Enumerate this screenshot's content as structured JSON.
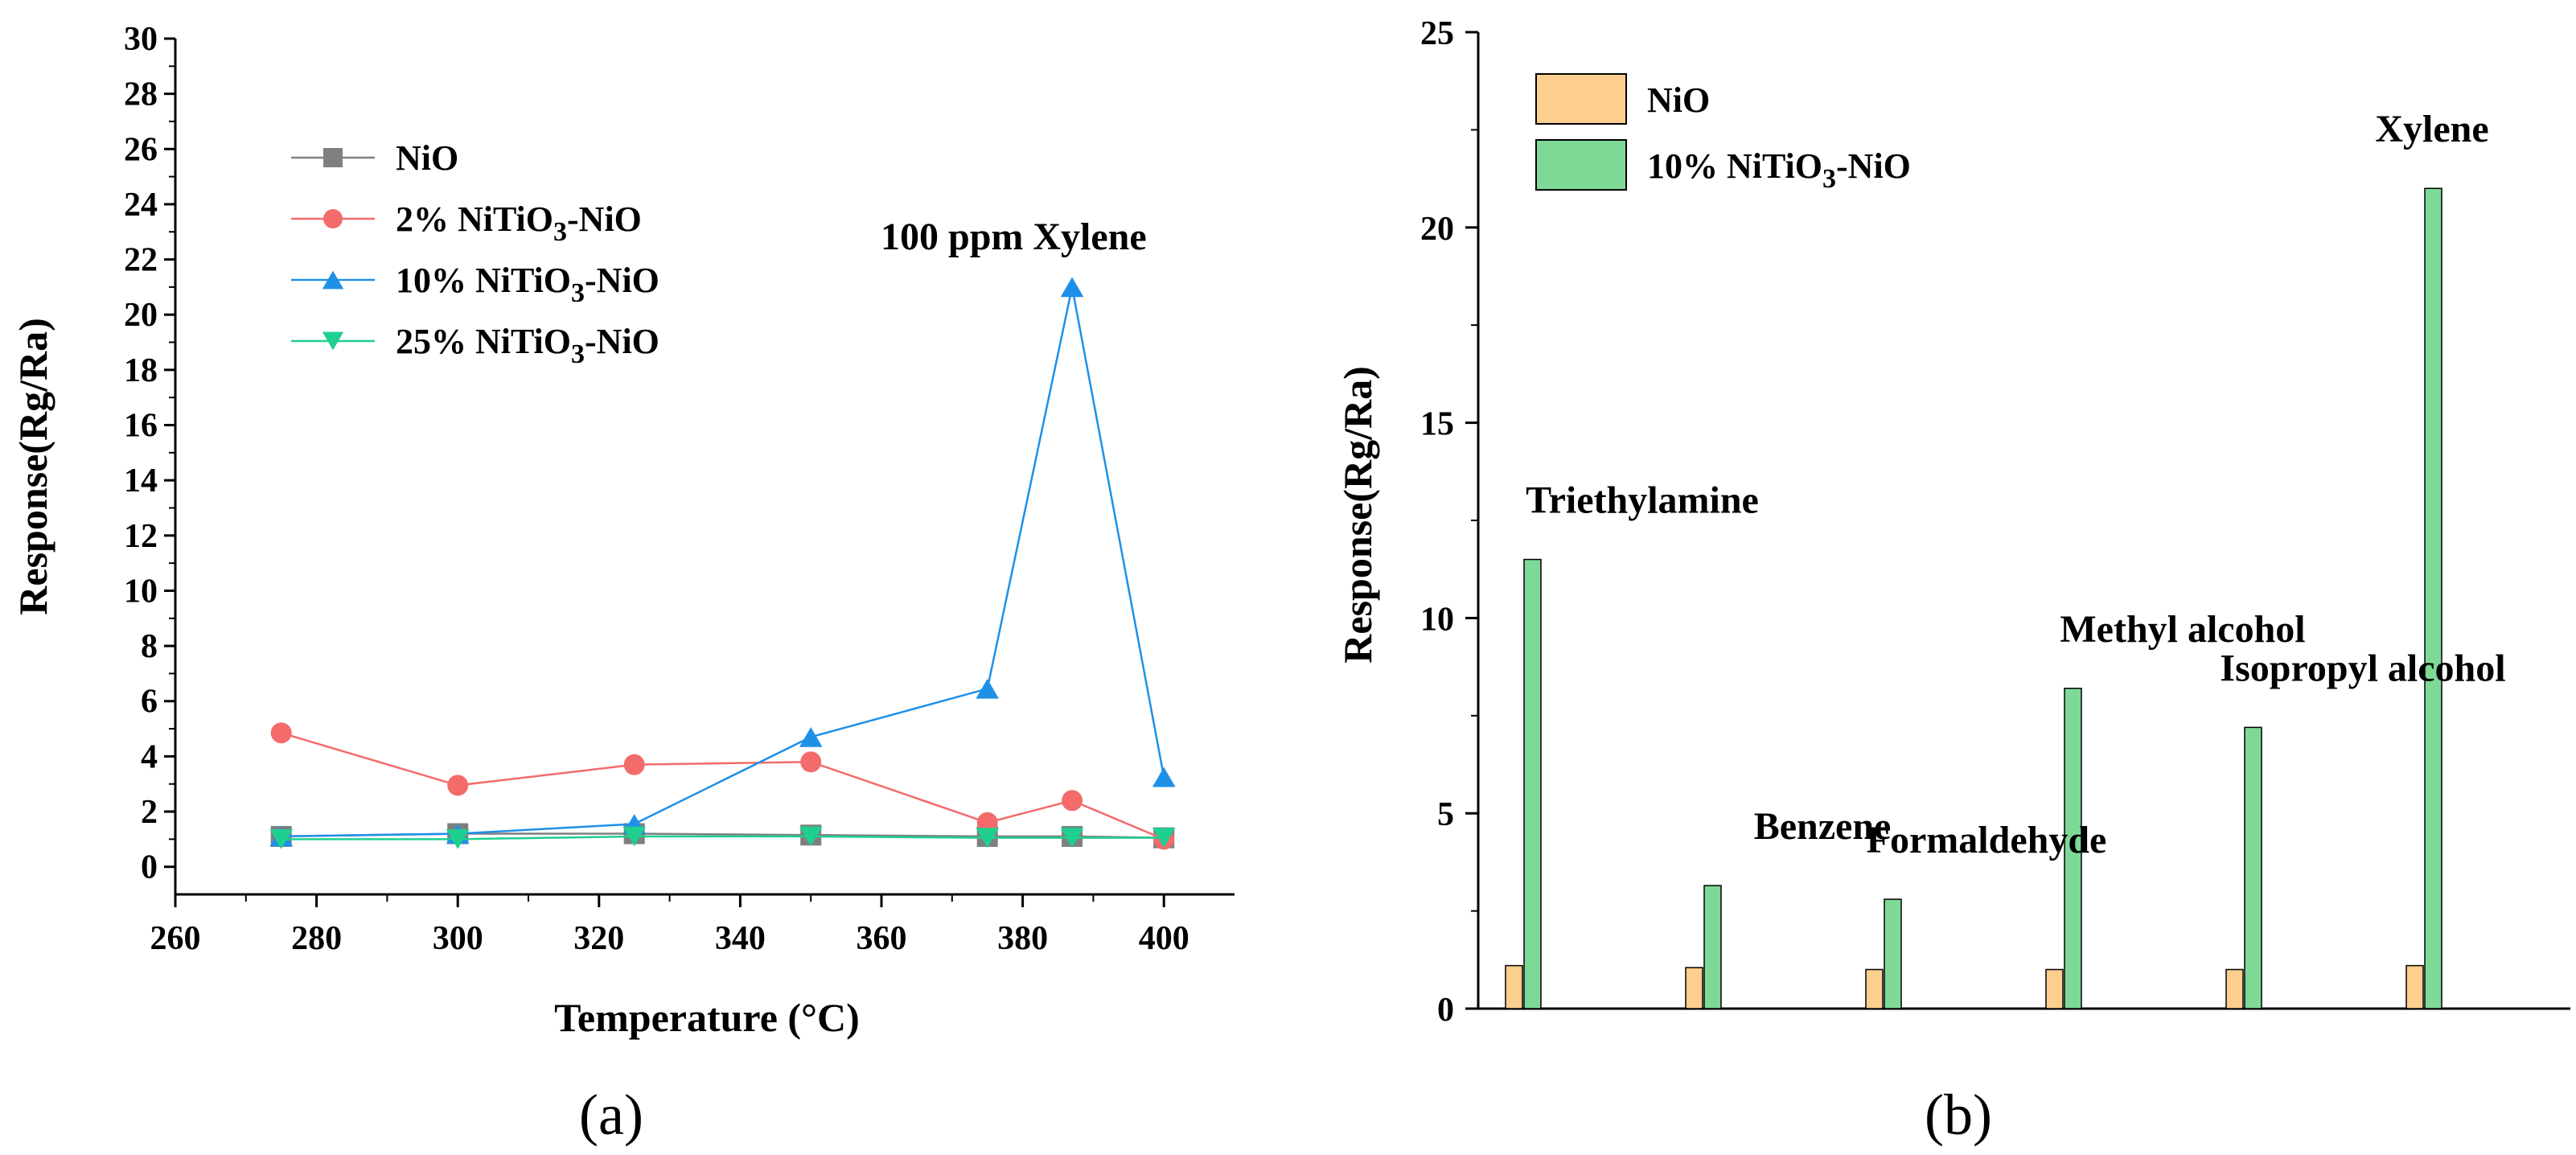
{
  "chart_data": [
    {
      "type": "line",
      "panel_label": "(a)",
      "title": "",
      "xlabel": "Temperature (°C)",
      "ylabel": "Response(Rg/Ra)",
      "xlim": [
        260,
        410
      ],
      "ylim": [
        -1,
        30
      ],
      "xticks": [
        260,
        280,
        300,
        320,
        340,
        360,
        380,
        400
      ],
      "yticks": [
        0,
        2,
        4,
        6,
        8,
        10,
        12,
        14,
        16,
        18,
        20,
        22,
        24,
        26,
        28,
        30
      ],
      "annotation": "100 ppm Xylene",
      "legend_position": "top-left",
      "series": [
        {
          "name": "NiO",
          "label_main": "NiO",
          "label_sub": "",
          "label_tail": "",
          "color": "#7f7f7f",
          "marker": "square",
          "x": [
            275,
            300,
            325,
            350,
            375,
            387,
            400
          ],
          "values": [
            1.1,
            1.2,
            1.2,
            1.15,
            1.1,
            1.1,
            1.05
          ]
        },
        {
          "name": "2% NiTiO3-NiO",
          "label_main": "2% NiTiO",
          "label_sub": "3",
          "label_tail": "-NiO",
          "color": "#f36b6b",
          "marker": "circle",
          "x": [
            275,
            300,
            325,
            350,
            375,
            387,
            400
          ],
          "values": [
            4.85,
            2.95,
            3.7,
            3.8,
            1.6,
            2.4,
            1.0
          ]
        },
        {
          "name": "10% NiTiO3-NiO",
          "label_main": "10% NiTiO",
          "label_sub": "3",
          "label_tail": "-NiO",
          "color": "#1e90e8",
          "marker": "triangle-up",
          "x": [
            275,
            300,
            325,
            350,
            375,
            387,
            400
          ],
          "values": [
            1.1,
            1.2,
            1.55,
            4.7,
            6.45,
            21.0,
            3.25
          ]
        },
        {
          "name": "25% NiTiO3-NiO",
          "label_main": "25% NiTiO",
          "label_sub": "3",
          "label_tail": "-NiO",
          "color": "#1fcf8f",
          "marker": "triangle-down",
          "x": [
            275,
            300,
            325,
            350,
            375,
            387,
            400
          ],
          "values": [
            1.0,
            1.0,
            1.1,
            1.1,
            1.05,
            1.05,
            1.05
          ]
        }
      ]
    },
    {
      "type": "bar",
      "panel_label": "(b)",
      "title": "",
      "xlabel": "",
      "ylabel": "Response(Rg/Ra)",
      "ylim": [
        0,
        25
      ],
      "yticks": [
        0,
        5,
        10,
        15,
        20,
        25
      ],
      "categories": [
        "Triethylamine",
        "Benzene",
        "Formaldehyde",
        "Methyl alcohol",
        "Isopropyl alcohol",
        "Xylene"
      ],
      "legend_position": "top-left",
      "series": [
        {
          "name": "NiO",
          "label_main": "NiO",
          "label_sub": "",
          "label_tail": "",
          "color": "#fdcf8f",
          "values": [
            1.1,
            1.05,
            1.0,
            1.0,
            1.0,
            1.1
          ]
        },
        {
          "name": "10% NiTiO3-NiO",
          "label_main": "10% NiTiO",
          "label_sub": "3",
          "label_tail": "-NiO",
          "color": "#7ed997",
          "values": [
            11.5,
            3.15,
            2.8,
            8.2,
            7.2,
            21.0
          ]
        }
      ]
    }
  ]
}
